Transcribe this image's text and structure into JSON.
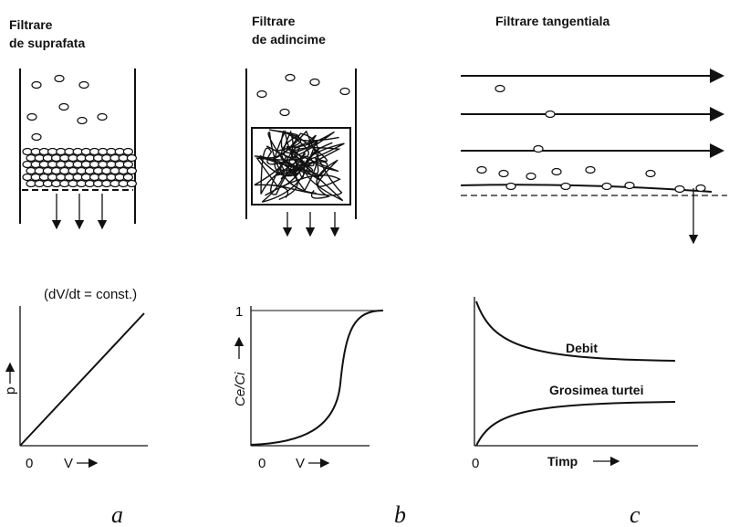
{
  "panels": [
    {
      "title": [
        "Filtrare",
        "de suprafata"
      ],
      "note": "(dV/dt = const.)",
      "y_label": "p",
      "origin": "0",
      "x_label": "V",
      "caption": "a"
    },
    {
      "title": [
        "Filtrare",
        "de adincime"
      ],
      "y_top": "1",
      "y_label": "Ce/Ci",
      "origin": "0",
      "x_label": "V",
      "caption": "b"
    },
    {
      "title": [
        "Filtrare tangentiala"
      ],
      "curve_labels": [
        "Debit",
        "Grosimea turtei"
      ],
      "origin": "0",
      "x_label": "Timp",
      "caption": "c"
    }
  ]
}
